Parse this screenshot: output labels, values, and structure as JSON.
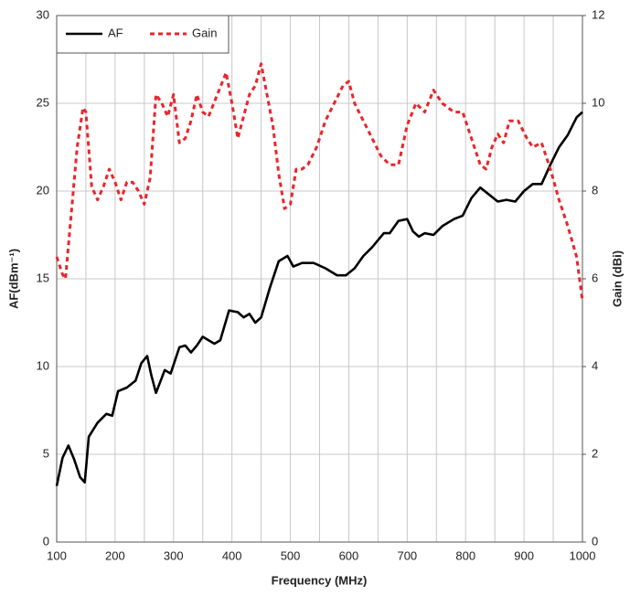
{
  "chart_data": {
    "type": "line",
    "xlabel": "Frequency (MHz)",
    "ylabel": "AF(dBm⁻¹)",
    "y2label": "Gain (dBi)",
    "xlim": [
      100,
      1000
    ],
    "xticks": [
      100,
      200,
      300,
      400,
      500,
      600,
      700,
      800,
      900,
      1000
    ],
    "xgrid_minor": [
      150,
      250,
      350,
      450,
      550,
      650,
      750,
      850,
      950
    ],
    "ylim": [
      0,
      30
    ],
    "yticks": [
      0,
      5,
      10,
      15,
      20,
      25,
      30
    ],
    "y2lim": [
      0,
      12
    ],
    "y2ticks": [
      0,
      2,
      4,
      6,
      8,
      10,
      12
    ],
    "grid": true,
    "legend": "top-left",
    "series": [
      {
        "name": "AF",
        "color": "#000000",
        "dash": false,
        "axis": "y",
        "x": [
          100,
          110,
          120,
          130,
          140,
          148,
          155,
          170,
          185,
          195,
          205,
          220,
          235,
          245,
          255,
          262,
          270,
          285,
          295,
          310,
          320,
          330,
          340,
          350,
          360,
          370,
          380,
          395,
          410,
          420,
          430,
          440,
          450,
          465,
          480,
          495,
          505,
          520,
          540,
          560,
          580,
          595,
          610,
          625,
          640,
          660,
          670,
          685,
          700,
          710,
          720,
          730,
          745,
          760,
          780,
          795,
          810,
          825,
          840,
          855,
          870,
          885,
          900,
          915,
          930,
          945,
          960,
          975,
          990,
          1000
        ],
        "values": [
          3.2,
          4.8,
          5.5,
          4.7,
          3.7,
          3.4,
          6.0,
          6.8,
          7.3,
          7.2,
          8.6,
          8.8,
          9.2,
          10.2,
          10.6,
          9.5,
          8.5,
          9.8,
          9.6,
          11.1,
          11.2,
          10.8,
          11.2,
          11.7,
          11.5,
          11.3,
          11.5,
          13.2,
          13.1,
          12.8,
          13.0,
          12.5,
          12.8,
          14.5,
          16.0,
          16.3,
          15.7,
          15.9,
          15.9,
          15.6,
          15.2,
          15.2,
          15.6,
          16.3,
          16.8,
          17.6,
          17.6,
          18.3,
          18.4,
          17.7,
          17.4,
          17.6,
          17.5,
          18.0,
          18.4,
          18.6,
          19.6,
          20.2,
          19.8,
          19.4,
          19.5,
          19.4,
          20.0,
          20.4,
          20.4,
          21.5,
          22.5,
          23.2,
          24.2,
          24.5
        ]
      },
      {
        "name": "Gain",
        "color": "#e8262b",
        "dash": true,
        "axis": "y2",
        "x": [
          100,
          110,
          115,
          125,
          135,
          145,
          150,
          160,
          170,
          180,
          190,
          200,
          210,
          220,
          230,
          240,
          250,
          260,
          270,
          280,
          290,
          300,
          310,
          320,
          330,
          340,
          350,
          360,
          375,
          390,
          400,
          410,
          420,
          430,
          440,
          450,
          460,
          470,
          480,
          490,
          500,
          510,
          520,
          530,
          545,
          560,
          575,
          590,
          600,
          610,
          625,
          640,
          655,
          670,
          685,
          700,
          715,
          730,
          745,
          760,
          780,
          795,
          810,
          825,
          835,
          845,
          855,
          865,
          875,
          890,
          905,
          915,
          930,
          945,
          960,
          975,
          990,
          1000
        ],
        "values": [
          6.5,
          6.1,
          6.0,
          7.5,
          9.0,
          9.9,
          9.8,
          8.1,
          7.8,
          8.1,
          8.5,
          8.2,
          7.8,
          8.2,
          8.2,
          8.0,
          7.7,
          8.3,
          10.2,
          10.0,
          9.7,
          10.2,
          9.1,
          9.2,
          9.6,
          10.2,
          9.8,
          9.7,
          10.2,
          10.7,
          10.0,
          9.2,
          9.7,
          10.2,
          10.4,
          10.9,
          10.2,
          9.5,
          8.4,
          7.6,
          7.7,
          8.5,
          8.5,
          8.6,
          9.0,
          9.6,
          10.0,
          10.4,
          10.5,
          10.0,
          9.6,
          9.2,
          8.8,
          8.6,
          8.6,
          9.5,
          10.0,
          9.8,
          10.3,
          10.0,
          9.8,
          9.8,
          9.2,
          8.6,
          8.5,
          9.0,
          9.3,
          9.1,
          9.6,
          9.6,
          9.2,
          9.0,
          9.1,
          8.5,
          7.8,
          7.2,
          6.5,
          5.5
        ]
      }
    ]
  }
}
